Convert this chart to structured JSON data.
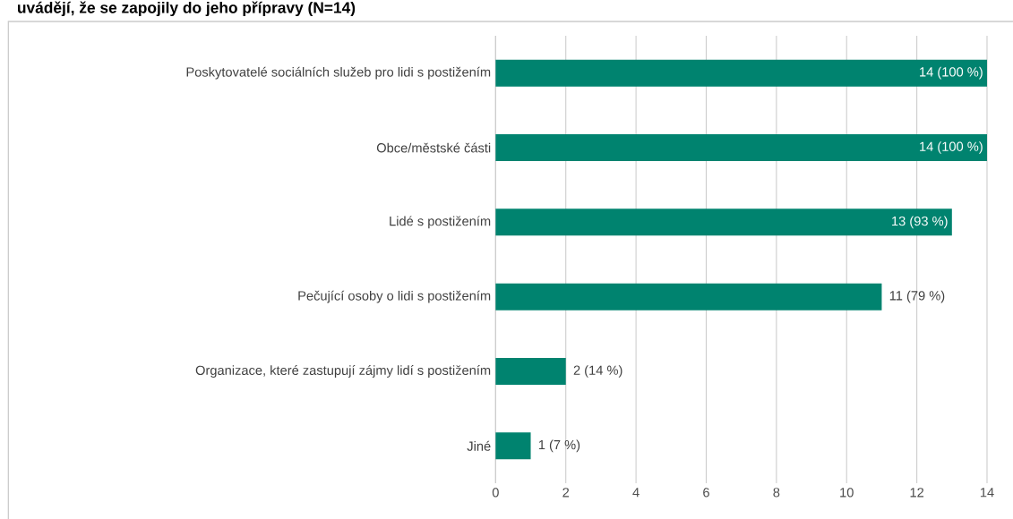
{
  "chart_data": {
    "type": "bar",
    "orientation": "horizontal",
    "title": "uvádějí, že se zapojily do jeho přípravy (N=14)",
    "categories": [
      "Poskytovatelé sociálních služeb pro lidi s postižením",
      "Obce/městské části",
      "Lidé s postižením",
      "Pečující osoby o lidi s postižením",
      "Organizace, které zastupují zájmy lidí s postižením",
      "Jiné"
    ],
    "values": [
      14,
      14,
      13,
      11,
      2,
      1
    ],
    "value_labels": [
      "14 (100 %)",
      "14 (100 %)",
      "13 (93 %)",
      "11 (79 %)",
      "2 (14 %)",
      "1 (7 %)"
    ],
    "color": "#00836f",
    "xlim": [
      0,
      14
    ],
    "xticks": [
      0,
      2,
      4,
      6,
      8,
      10,
      12,
      14
    ],
    "grid": "x"
  }
}
